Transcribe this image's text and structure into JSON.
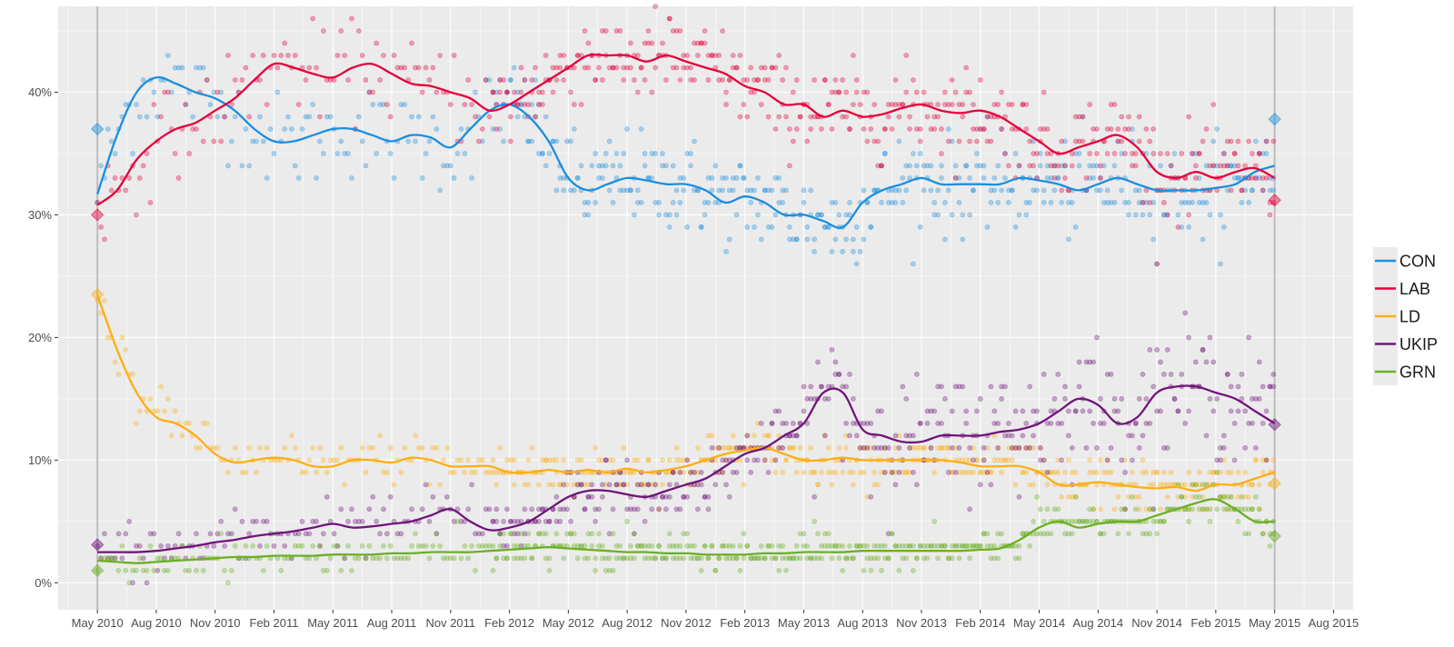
{
  "chart_data": {
    "type": "scatter",
    "title": "",
    "xlabel": "",
    "ylabel": "",
    "x_ticks": [
      "May 2010",
      "Aug 2010",
      "Nov 2010",
      "Feb 2011",
      "May 2011",
      "Aug 2011",
      "Nov 2011",
      "Feb 2012",
      "May 2012",
      "Aug 2012",
      "Nov 2012",
      "Feb 2013",
      "May 2013",
      "Aug 2013",
      "Nov 2013",
      "Feb 2014",
      "May 2014",
      "Aug 2014",
      "Nov 2014",
      "Feb 2015",
      "May 2015",
      "Aug 2015"
    ],
    "y_ticks": [
      "0%",
      "10%",
      "20%",
      "30%",
      "40%"
    ],
    "ylim": [
      -2.2,
      47
    ],
    "xlim_months": [
      "Mar 2010",
      "Sep 2015"
    ],
    "grid": true,
    "legend_position": "right",
    "election_markers": [
      "May 2010",
      "May 2015"
    ],
    "series": [
      {
        "name": "CON",
        "color": "#1c8ede",
        "trend": [
          [
            0,
            31.7
          ],
          [
            1,
            36.5
          ],
          [
            2,
            40
          ],
          [
            3,
            41.2
          ],
          [
            4,
            40.7
          ],
          [
            5,
            40
          ],
          [
            6,
            39.5
          ],
          [
            7,
            38.5
          ],
          [
            8,
            37
          ],
          [
            9,
            36
          ],
          [
            10,
            36
          ],
          [
            11,
            36.5
          ],
          [
            12,
            37
          ],
          [
            13,
            37
          ],
          [
            14,
            36.5
          ],
          [
            15,
            36
          ],
          [
            16,
            36.5
          ],
          [
            17,
            36.3
          ],
          [
            18,
            35.5
          ],
          [
            19,
            37
          ],
          [
            20,
            38.5
          ],
          [
            21,
            39
          ],
          [
            22,
            38
          ],
          [
            23,
            36
          ],
          [
            24,
            33
          ],
          [
            25,
            32
          ],
          [
            26,
            32.5
          ],
          [
            27,
            33
          ],
          [
            28,
            32.8
          ],
          [
            29,
            32.5
          ],
          [
            30,
            32.5
          ],
          [
            31,
            32
          ],
          [
            32,
            31
          ],
          [
            33,
            31.5
          ],
          [
            34,
            31
          ],
          [
            35,
            30
          ],
          [
            36,
            30
          ],
          [
            37,
            29.5
          ],
          [
            38,
            29
          ],
          [
            39,
            31
          ],
          [
            40,
            32
          ],
          [
            41,
            32.5
          ],
          [
            42,
            33
          ],
          [
            43,
            32.5
          ],
          [
            44,
            32.5
          ],
          [
            45,
            32.5
          ],
          [
            46,
            32.5
          ],
          [
            47,
            33
          ],
          [
            48,
            32.8
          ],
          [
            49,
            32.5
          ],
          [
            50,
            32
          ],
          [
            51,
            32.5
          ],
          [
            52,
            33
          ],
          [
            53,
            32.5
          ],
          [
            54,
            32
          ],
          [
            55,
            32
          ],
          [
            56,
            32
          ],
          [
            57,
            32.2
          ],
          [
            58,
            32.5
          ],
          [
            59,
            33.5
          ],
          [
            60,
            34
          ]
        ],
        "spread": 2.6,
        "first_poll": 37,
        "result": 37.8
      },
      {
        "name": "LAB",
        "color": "#e4003b",
        "trend": [
          [
            0,
            30.8
          ],
          [
            1,
            32
          ],
          [
            2,
            34.5
          ],
          [
            3,
            36
          ],
          [
            4,
            37
          ],
          [
            5,
            37.5
          ],
          [
            6,
            38.5
          ],
          [
            7,
            39.5
          ],
          [
            8,
            41
          ],
          [
            9,
            42.3
          ],
          [
            10,
            42
          ],
          [
            11,
            41.5
          ],
          [
            12,
            41.2
          ],
          [
            13,
            42
          ],
          [
            14,
            42.3
          ],
          [
            15,
            41.5
          ],
          [
            16,
            40.7
          ],
          [
            17,
            40.5
          ],
          [
            18,
            40
          ],
          [
            19,
            39.5
          ],
          [
            20,
            38.5
          ],
          [
            21,
            39
          ],
          [
            22,
            40
          ],
          [
            23,
            41
          ],
          [
            24,
            42
          ],
          [
            25,
            43
          ],
          [
            26,
            43
          ],
          [
            27,
            43
          ],
          [
            28,
            42.5
          ],
          [
            29,
            43
          ],
          [
            30,
            42.5
          ],
          [
            31,
            42
          ],
          [
            32,
            41.5
          ],
          [
            33,
            40.5
          ],
          [
            34,
            40
          ],
          [
            35,
            39
          ],
          [
            36,
            39
          ],
          [
            37,
            38
          ],
          [
            38,
            38.5
          ],
          [
            39,
            38
          ],
          [
            40,
            38.2
          ],
          [
            41,
            38.7
          ],
          [
            42,
            39
          ],
          [
            43,
            38.5
          ],
          [
            44,
            38.3
          ],
          [
            45,
            38.5
          ],
          [
            46,
            38
          ],
          [
            47,
            37
          ],
          [
            48,
            36
          ],
          [
            49,
            35
          ],
          [
            50,
            35.5
          ],
          [
            51,
            36
          ],
          [
            52,
            36.5
          ],
          [
            53,
            35.5
          ],
          [
            54,
            33.5
          ],
          [
            55,
            33
          ],
          [
            56,
            33.5
          ],
          [
            57,
            33
          ],
          [
            58,
            33.5
          ],
          [
            59,
            33.8
          ],
          [
            60,
            33
          ]
        ],
        "spread": 2.4,
        "first_poll": 30,
        "result": 31.2
      },
      {
        "name": "LD",
        "color": "#fdae14",
        "trend": [
          [
            0,
            23.5
          ],
          [
            1,
            19
          ],
          [
            2,
            15.5
          ],
          [
            3,
            13.5
          ],
          [
            4,
            13
          ],
          [
            5,
            12
          ],
          [
            6,
            10.5
          ],
          [
            7,
            9.8
          ],
          [
            8,
            10
          ],
          [
            9,
            10.2
          ],
          [
            10,
            10
          ],
          [
            11,
            9.5
          ],
          [
            12,
            9.5
          ],
          [
            13,
            10
          ],
          [
            14,
            10
          ],
          [
            15,
            9.8
          ],
          [
            16,
            10.2
          ],
          [
            17,
            10
          ],
          [
            18,
            9.5
          ],
          [
            19,
            9.5
          ],
          [
            20,
            9.5
          ],
          [
            21,
            9
          ],
          [
            22,
            9
          ],
          [
            23,
            9.2
          ],
          [
            24,
            9
          ],
          [
            25,
            9.2
          ],
          [
            26,
            9
          ],
          [
            27,
            9.3
          ],
          [
            28,
            9
          ],
          [
            29,
            9.2
          ],
          [
            30,
            9.5
          ],
          [
            31,
            10
          ],
          [
            32,
            10.5
          ],
          [
            33,
            10.8
          ],
          [
            34,
            11
          ],
          [
            35,
            10.5
          ],
          [
            36,
            10
          ],
          [
            37,
            10
          ],
          [
            38,
            10.2
          ],
          [
            39,
            10
          ],
          [
            40,
            10
          ],
          [
            41,
            10
          ],
          [
            42,
            10
          ],
          [
            43,
            10
          ],
          [
            44,
            9.8
          ],
          [
            45,
            9.5
          ],
          [
            46,
            9.5
          ],
          [
            47,
            9.5
          ],
          [
            48,
            9
          ],
          [
            49,
            8
          ],
          [
            50,
            8
          ],
          [
            51,
            8.2
          ],
          [
            52,
            8
          ],
          [
            53,
            7.8
          ],
          [
            54,
            7.7
          ],
          [
            55,
            7.8
          ],
          [
            56,
            7.5
          ],
          [
            57,
            8
          ],
          [
            58,
            8
          ],
          [
            59,
            8.5
          ],
          [
            60,
            9
          ]
        ],
        "spread": 1.3,
        "first_poll": 23.5,
        "result": 8.1
      },
      {
        "name": "UKIP",
        "color": "#70147a",
        "trend": [
          [
            0,
            2.5
          ],
          [
            1,
            2.5
          ],
          [
            2,
            2.5
          ],
          [
            3,
            2.6
          ],
          [
            4,
            2.8
          ],
          [
            5,
            3
          ],
          [
            6,
            3.3
          ],
          [
            7,
            3.5
          ],
          [
            8,
            3.8
          ],
          [
            9,
            4
          ],
          [
            10,
            4.2
          ],
          [
            11,
            4.5
          ],
          [
            12,
            4.8
          ],
          [
            13,
            4.5
          ],
          [
            14,
            4.6
          ],
          [
            15,
            4.8
          ],
          [
            16,
            5
          ],
          [
            17,
            5.5
          ],
          [
            18,
            6
          ],
          [
            19,
            5
          ],
          [
            20,
            4.3
          ],
          [
            21,
            4.5
          ],
          [
            22,
            5
          ],
          [
            23,
            6
          ],
          [
            24,
            7
          ],
          [
            25,
            7.5
          ],
          [
            26,
            7.5
          ],
          [
            27,
            7.2
          ],
          [
            28,
            7
          ],
          [
            29,
            7.5
          ],
          [
            30,
            8
          ],
          [
            31,
            8.5
          ],
          [
            32,
            9.5
          ],
          [
            33,
            10.5
          ],
          [
            34,
            11
          ],
          [
            35,
            12
          ],
          [
            36,
            13
          ],
          [
            37,
            15.5
          ],
          [
            38,
            15.5
          ],
          [
            39,
            12.5
          ],
          [
            40,
            12
          ],
          [
            41,
            11.5
          ],
          [
            42,
            11.5
          ],
          [
            43,
            12
          ],
          [
            44,
            12
          ],
          [
            45,
            12
          ],
          [
            46,
            12.3
          ],
          [
            47,
            12.5
          ],
          [
            48,
            13
          ],
          [
            49,
            14
          ],
          [
            50,
            15
          ],
          [
            51,
            14.5
          ],
          [
            52,
            13
          ],
          [
            53,
            13.5
          ],
          [
            54,
            15.5
          ],
          [
            55,
            16
          ],
          [
            56,
            16
          ],
          [
            57,
            15.5
          ],
          [
            58,
            15
          ],
          [
            59,
            14
          ],
          [
            60,
            13
          ]
        ],
        "spread": 1.6,
        "first_poll": 3.1,
        "result": 12.9
      },
      {
        "name": "GRN",
        "color": "#6ab023",
        "trend": [
          [
            0,
            1.8
          ],
          [
            1,
            1.7
          ],
          [
            2,
            1.6
          ],
          [
            3,
            1.7
          ],
          [
            4,
            1.8
          ],
          [
            5,
            1.9
          ],
          [
            6,
            2
          ],
          [
            7,
            2.1
          ],
          [
            8,
            2.1
          ],
          [
            9,
            2.2
          ],
          [
            10,
            2.2
          ],
          [
            11,
            2.2
          ],
          [
            12,
            2.3
          ],
          [
            13,
            2.3
          ],
          [
            14,
            2.3
          ],
          [
            15,
            2.4
          ],
          [
            16,
            2.4
          ],
          [
            17,
            2.5
          ],
          [
            18,
            2.5
          ],
          [
            19,
            2.5
          ],
          [
            20,
            2.6
          ],
          [
            21,
            2.7
          ],
          [
            22,
            2.8
          ],
          [
            23,
            2.9
          ],
          [
            24,
            2.8
          ],
          [
            25,
            2.7
          ],
          [
            26,
            2.6
          ],
          [
            27,
            2.5
          ],
          [
            28,
            2.5
          ],
          [
            29,
            2.4
          ],
          [
            30,
            2.4
          ],
          [
            31,
            2.3
          ],
          [
            32,
            2.3
          ],
          [
            33,
            2.3
          ],
          [
            34,
            2.4
          ],
          [
            35,
            2.4
          ],
          [
            36,
            2.5
          ],
          [
            37,
            2.5
          ],
          [
            38,
            2.5
          ],
          [
            39,
            2.6
          ],
          [
            40,
            2.6
          ],
          [
            41,
            2.6
          ],
          [
            42,
            2.6
          ],
          [
            43,
            2.6
          ],
          [
            44,
            2.6
          ],
          [
            45,
            2.7
          ],
          [
            46,
            2.8
          ],
          [
            47,
            3.5
          ],
          [
            48,
            4.5
          ],
          [
            49,
            5
          ],
          [
            50,
            4.5
          ],
          [
            51,
            4.8
          ],
          [
            52,
            5
          ],
          [
            53,
            5
          ],
          [
            54,
            5.5
          ],
          [
            55,
            6
          ],
          [
            56,
            6.5
          ],
          [
            57,
            6.8
          ],
          [
            58,
            6
          ],
          [
            59,
            5
          ],
          [
            60,
            5
          ]
        ],
        "spread": 1.0,
        "first_poll": 1,
        "result": 3.8
      }
    ]
  }
}
